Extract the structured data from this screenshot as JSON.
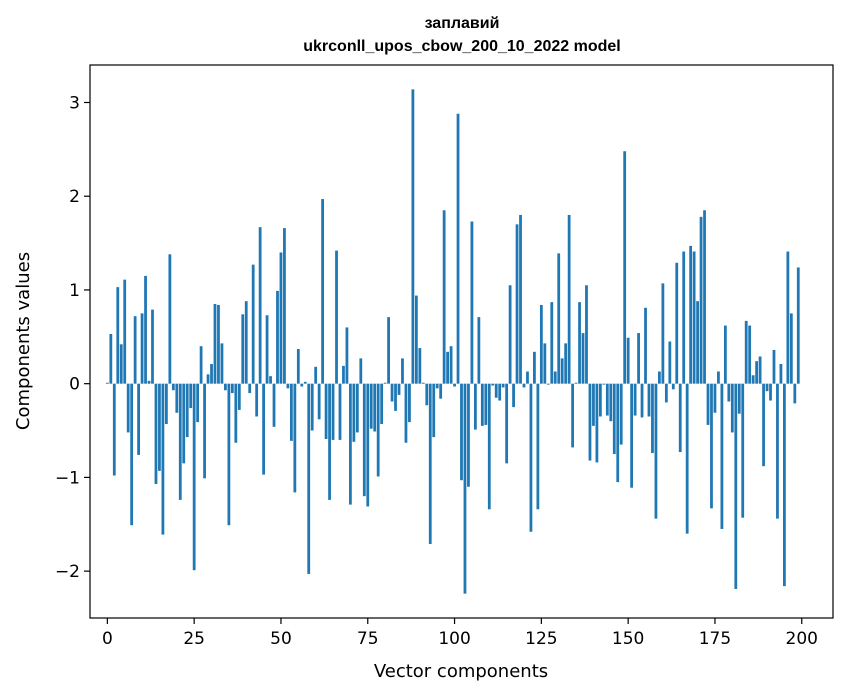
{
  "chart_data": {
    "type": "bar",
    "title": "заплавий",
    "subtitle": "ukrconll_upos_cbow_200_10_2022 model",
    "xlabel": "Vector components",
    "ylabel": "Components values",
    "xlim": [
      -5,
      209
    ],
    "ylim": [
      -2.5,
      3.4
    ],
    "xticks": [
      0,
      25,
      50,
      75,
      100,
      125,
      150,
      175,
      200
    ],
    "xtick_labels": [
      "0",
      "25",
      "50",
      "75",
      "100",
      "125",
      "150",
      "175",
      "200"
    ],
    "yticks": [
      -2,
      -1,
      0,
      1,
      2,
      3
    ],
    "ytick_labels": [
      "−2",
      "−1",
      "0",
      "1",
      "2",
      "3"
    ],
    "grid": false,
    "bar_color": "#1f77b4",
    "values": [
      0.01,
      0.53,
      -0.98,
      1.03,
      0.42,
      1.11,
      -0.52,
      -1.51,
      0.72,
      -0.76,
      0.75,
      1.15,
      0.03,
      0.79,
      -1.07,
      -0.93,
      -1.61,
      -0.43,
      1.38,
      -0.07,
      -0.31,
      -1.24,
      -0.85,
      -0.57,
      -0.26,
      -1.99,
      -0.41,
      0.4,
      -1.01,
      0.1,
      0.21,
      0.85,
      0.84,
      0.43,
      -0.07,
      -1.51,
      -0.1,
      -0.63,
      -0.28,
      0.74,
      0.88,
      -0.1,
      1.27,
      -0.35,
      1.67,
      -0.97,
      0.73,
      0.08,
      -0.46,
      0.99,
      1.4,
      1.66,
      -0.05,
      -0.61,
      -1.16,
      0.37,
      -0.03,
      0.02,
      -2.03,
      -0.5,
      0.18,
      -0.38,
      1.97,
      -0.59,
      -1.24,
      -0.6,
      1.42,
      -0.6,
      0.19,
      0.6,
      -1.29,
      -0.62,
      -0.52,
      0.27,
      -1.2,
      -1.31,
      -0.48,
      -0.51,
      -0.99,
      -0.43,
      0.01,
      0.71,
      -0.19,
      -0.29,
      -0.12,
      0.27,
      -0.63,
      -0.41,
      3.14,
      0.94,
      0.38,
      0.01,
      -0.23,
      -1.71,
      -0.57,
      -0.05,
      -0.16,
      1.85,
      0.34,
      0.4,
      -0.03,
      2.88,
      -1.03,
      -2.24,
      -1.1,
      1.73,
      -0.49,
      0.71,
      -0.45,
      -0.44,
      -1.34,
      -0.02,
      -0.15,
      -0.18,
      -0.04,
      -0.85,
      1.05,
      -0.25,
      1.7,
      1.8,
      -0.04,
      0.13,
      -1.58,
      0.34,
      -1.34,
      0.84,
      0.43,
      -0.01,
      0.87,
      0.13,
      1.39,
      0.27,
      0.43,
      1.8,
      -0.68,
      0.01,
      0.87,
      0.54,
      1.05,
      -0.82,
      -0.45,
      -0.84,
      -0.35,
      -0.01,
      -0.34,
      -0.4,
      -0.75,
      -1.05,
      -0.65,
      2.48,
      0.49,
      -1.11,
      -0.34,
      0.54,
      -0.36,
      0.81,
      -0.35,
      -0.74,
      -1.44,
      0.13,
      1.07,
      -0.2,
      0.45,
      -0.06,
      1.29,
      -0.73,
      1.41,
      -1.6,
      1.47,
      1.41,
      0.88,
      1.78,
      1.85,
      -0.44,
      -1.33,
      -0.31,
      0.13,
      -1.55,
      0.62,
      -0.19,
      -0.52,
      -2.19,
      -0.32,
      -1.43,
      0.67,
      0.62,
      0.09,
      0.24,
      0.29,
      -0.88,
      -0.08,
      -0.18,
      0.36,
      -1.44,
      0.21,
      -2.16,
      1.41,
      0.75,
      -0.21,
      1.24
    ]
  }
}
